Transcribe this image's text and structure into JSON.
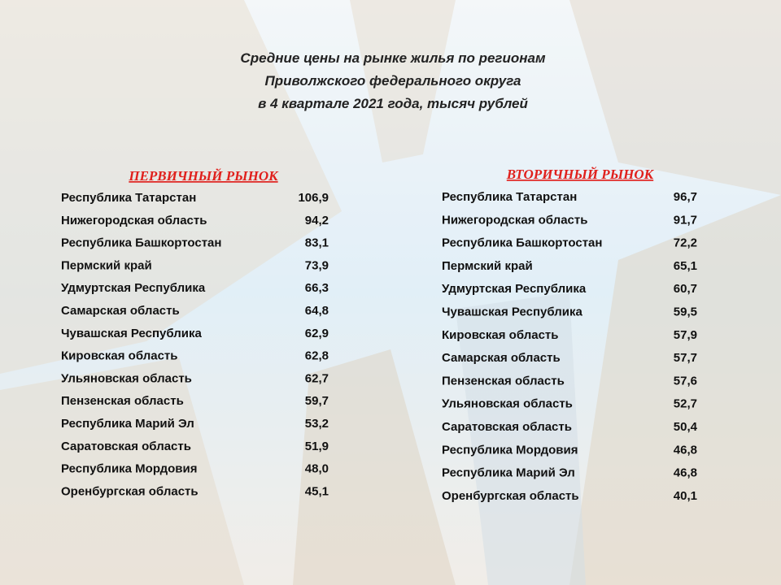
{
  "title": {
    "lines": [
      "Средние цены на рынке жилья по регионам",
      "Приволжского федерального округа",
      "в 4 квартале 2021 года, тысяч рублей"
    ]
  },
  "primary": {
    "header": "ПЕРВИЧНЫЙ РЫНОК",
    "rows": [
      [
        "Республика Татарстан",
        "106,9"
      ],
      [
        "Нижегородская область",
        "94,2"
      ],
      [
        "Республика Башкортостан",
        "83,1"
      ],
      [
        "Пермский край",
        "73,9"
      ],
      [
        "Удмуртская Республика",
        "66,3"
      ],
      [
        "Самарская область",
        "64,8"
      ],
      [
        "Чувашская Республика",
        "62,9"
      ],
      [
        "Кировская область",
        "62,8"
      ],
      [
        "Ульяновская область",
        "62,7"
      ],
      [
        "Пензенская область",
        "59,7"
      ],
      [
        "Республика Марий Эл",
        "53,2"
      ],
      [
        "Саратовская область",
        "51,9"
      ],
      [
        "Республика Мордовия",
        "48,0"
      ],
      [
        "Оренбургская область",
        "45,1"
      ]
    ]
  },
  "secondary": {
    "header": "ВТОРИЧНЫЙ РЫНОК",
    "rows": [
      [
        "Республика Татарстан",
        "96,7"
      ],
      [
        "Нижегородская область",
        "91,7"
      ],
      [
        "Республика Башкортостан",
        "72,2"
      ],
      [
        "Пермский край",
        "65,1"
      ],
      [
        "Удмуртская Республика",
        "60,7"
      ],
      [
        "Чувашская Республика",
        "59,5"
      ],
      [
        "Кировская область",
        "57,9"
      ],
      [
        "Самарская область",
        "57,7"
      ],
      [
        "Пензенская область",
        "57,6"
      ],
      [
        "Ульяновская область",
        "52,7"
      ],
      [
        "Саратовская область",
        "50,4"
      ],
      [
        "Республика Мордовия",
        "46,8"
      ],
      [
        "Республика Марий Эл",
        "46,8"
      ],
      [
        "Оренбургская область",
        "40,1"
      ]
    ]
  }
}
